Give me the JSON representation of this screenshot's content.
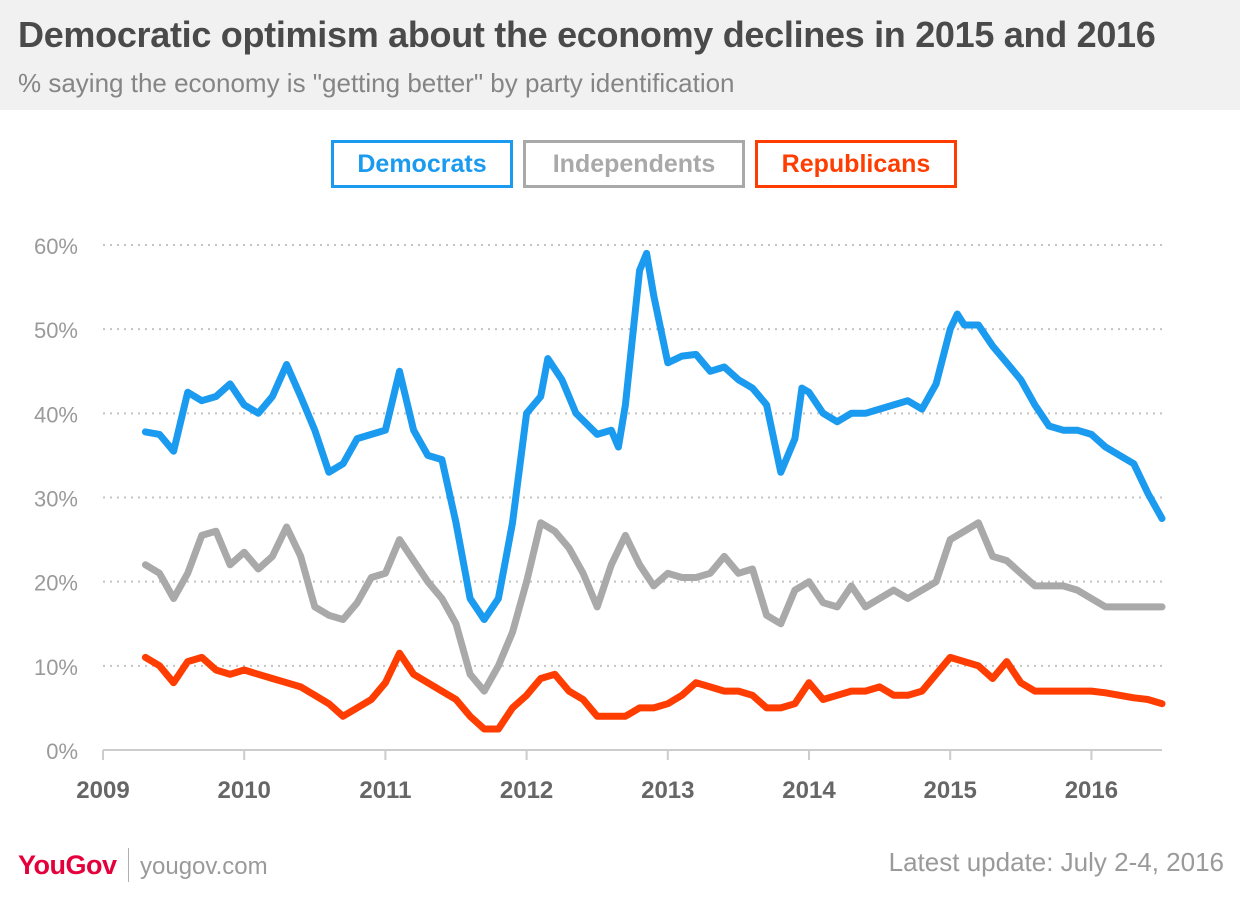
{
  "header": {
    "title": "Democratic optimism about the economy declines in 2015 and 2016",
    "subtitle": "% saying the economy is \"getting better\" by party identification"
  },
  "legend": [
    {
      "label": "Democrats",
      "color": "#1a9bf0"
    },
    {
      "label": "Independents",
      "color": "#a9a9a9"
    },
    {
      "label": "Republicans",
      "color": "#ff3d00"
    }
  ],
  "footer": {
    "logo": "YouGov",
    "site": "yougov.com",
    "update": "Latest update: July 2-4, 2016"
  },
  "chart_data": {
    "type": "line",
    "title": "Democratic optimism about the economy declines in 2015 and 2016",
    "subtitle": "% saying the economy is \"getting better\" by party identification",
    "xlabel": "",
    "ylabel": "",
    "xlim": [
      2009.0,
      2016.5
    ],
    "ylim": [
      0,
      60
    ],
    "x_ticks": [
      2009,
      2010,
      2011,
      2012,
      2013,
      2014,
      2015,
      2016
    ],
    "x_tick_labels": [
      "2009",
      "2010",
      "2011",
      "2012",
      "2013",
      "2014",
      "2015",
      "2016"
    ],
    "y_ticks": [
      0,
      10,
      20,
      30,
      40,
      50,
      60
    ],
    "y_tick_labels": [
      "0%",
      "10%",
      "20%",
      "30%",
      "40%",
      "50%",
      "60%"
    ],
    "grid": "horizontal dotted",
    "legend_position": "top-center",
    "series": [
      {
        "name": "Democrats",
        "color": "#1a9bf0",
        "points": [
          [
            2009.3,
            37.8
          ],
          [
            2009.4,
            37.5
          ],
          [
            2009.5,
            35.5
          ],
          [
            2009.6,
            42.5
          ],
          [
            2009.7,
            41.5
          ],
          [
            2009.8,
            42
          ],
          [
            2009.9,
            43.5
          ],
          [
            2010.0,
            41
          ],
          [
            2010.1,
            40
          ],
          [
            2010.2,
            42
          ],
          [
            2010.3,
            45.8
          ],
          [
            2010.4,
            42
          ],
          [
            2010.5,
            38
          ],
          [
            2010.6,
            33
          ],
          [
            2010.7,
            34
          ],
          [
            2010.8,
            37
          ],
          [
            2010.9,
            37.5
          ],
          [
            2011.0,
            38
          ],
          [
            2011.1,
            45
          ],
          [
            2011.2,
            38
          ],
          [
            2011.3,
            35
          ],
          [
            2011.4,
            34.5
          ],
          [
            2011.5,
            27
          ],
          [
            2011.6,
            18
          ],
          [
            2011.7,
            15.5
          ],
          [
            2011.8,
            18
          ],
          [
            2011.9,
            27
          ],
          [
            2012.0,
            40
          ],
          [
            2012.1,
            42
          ],
          [
            2012.15,
            46.5
          ],
          [
            2012.25,
            44
          ],
          [
            2012.35,
            40
          ],
          [
            2012.5,
            37.5
          ],
          [
            2012.6,
            38
          ],
          [
            2012.65,
            36
          ],
          [
            2012.7,
            41
          ],
          [
            2012.8,
            57
          ],
          [
            2012.85,
            59
          ],
          [
            2012.9,
            54
          ],
          [
            2013.0,
            46
          ],
          [
            2013.1,
            46.8
          ],
          [
            2013.2,
            47
          ],
          [
            2013.3,
            45
          ],
          [
            2013.4,
            45.5
          ],
          [
            2013.5,
            44
          ],
          [
            2013.6,
            43
          ],
          [
            2013.7,
            41
          ],
          [
            2013.8,
            33
          ],
          [
            2013.9,
            37
          ],
          [
            2013.95,
            43
          ],
          [
            2014.0,
            42.5
          ],
          [
            2014.1,
            40
          ],
          [
            2014.2,
            39
          ],
          [
            2014.3,
            40
          ],
          [
            2014.4,
            40
          ],
          [
            2014.5,
            40.5
          ],
          [
            2014.6,
            41
          ],
          [
            2014.7,
            41.5
          ],
          [
            2014.8,
            40.5
          ],
          [
            2014.9,
            43.5
          ],
          [
            2015.0,
            50
          ],
          [
            2015.05,
            51.8
          ],
          [
            2015.1,
            50.5
          ],
          [
            2015.2,
            50.5
          ],
          [
            2015.3,
            48
          ],
          [
            2015.4,
            46
          ],
          [
            2015.5,
            44
          ],
          [
            2015.6,
            41
          ],
          [
            2015.7,
            38.5
          ],
          [
            2015.8,
            38
          ],
          [
            2015.9,
            38
          ],
          [
            2016.0,
            37.5
          ],
          [
            2016.1,
            36
          ],
          [
            2016.2,
            35
          ],
          [
            2016.3,
            34
          ],
          [
            2016.4,
            30.5
          ],
          [
            2016.5,
            27.5
          ]
        ]
      },
      {
        "name": "Independents",
        "color": "#a9a9a9",
        "points": [
          [
            2009.3,
            22
          ],
          [
            2009.4,
            21
          ],
          [
            2009.5,
            18
          ],
          [
            2009.6,
            21
          ],
          [
            2009.7,
            25.5
          ],
          [
            2009.8,
            26
          ],
          [
            2009.9,
            22
          ],
          [
            2010.0,
            23.5
          ],
          [
            2010.1,
            21.5
          ],
          [
            2010.2,
            23
          ],
          [
            2010.3,
            26.5
          ],
          [
            2010.4,
            23
          ],
          [
            2010.5,
            17
          ],
          [
            2010.6,
            16
          ],
          [
            2010.7,
            15.5
          ],
          [
            2010.8,
            17.5
          ],
          [
            2010.9,
            20.5
          ],
          [
            2011.0,
            21
          ],
          [
            2011.1,
            25
          ],
          [
            2011.2,
            22.5
          ],
          [
            2011.3,
            20
          ],
          [
            2011.4,
            18
          ],
          [
            2011.5,
            15
          ],
          [
            2011.6,
            9
          ],
          [
            2011.7,
            7
          ],
          [
            2011.8,
            10
          ],
          [
            2011.9,
            14
          ],
          [
            2012.0,
            20
          ],
          [
            2012.1,
            27
          ],
          [
            2012.2,
            26
          ],
          [
            2012.3,
            24
          ],
          [
            2012.4,
            21
          ],
          [
            2012.5,
            17
          ],
          [
            2012.6,
            22
          ],
          [
            2012.7,
            25.5
          ],
          [
            2012.8,
            22
          ],
          [
            2012.9,
            19.5
          ],
          [
            2013.0,
            21
          ],
          [
            2013.1,
            20.5
          ],
          [
            2013.2,
            20.5
          ],
          [
            2013.3,
            21
          ],
          [
            2013.4,
            23
          ],
          [
            2013.5,
            21
          ],
          [
            2013.6,
            21.5
          ],
          [
            2013.7,
            16
          ],
          [
            2013.8,
            15
          ],
          [
            2013.9,
            19
          ],
          [
            2014.0,
            20
          ],
          [
            2014.1,
            17.5
          ],
          [
            2014.2,
            17
          ],
          [
            2014.3,
            19.5
          ],
          [
            2014.4,
            17
          ],
          [
            2014.5,
            18
          ],
          [
            2014.6,
            19
          ],
          [
            2014.7,
            18
          ],
          [
            2014.8,
            19
          ],
          [
            2014.9,
            20
          ],
          [
            2015.0,
            25
          ],
          [
            2015.1,
            26
          ],
          [
            2015.2,
            27
          ],
          [
            2015.3,
            23
          ],
          [
            2015.4,
            22.5
          ],
          [
            2015.5,
            21
          ],
          [
            2015.6,
            19.5
          ],
          [
            2015.7,
            19.5
          ],
          [
            2015.8,
            19.5
          ],
          [
            2015.9,
            19
          ],
          [
            2016.0,
            18
          ],
          [
            2016.1,
            17
          ],
          [
            2016.2,
            17
          ],
          [
            2016.3,
            17
          ],
          [
            2016.4,
            17
          ],
          [
            2016.5,
            17
          ]
        ]
      },
      {
        "name": "Republicans",
        "color": "#ff3d00",
        "points": [
          [
            2009.3,
            11
          ],
          [
            2009.4,
            10
          ],
          [
            2009.5,
            8
          ],
          [
            2009.6,
            10.5
          ],
          [
            2009.7,
            11
          ],
          [
            2009.8,
            9.5
          ],
          [
            2009.9,
            9
          ],
          [
            2010.0,
            9.5
          ],
          [
            2010.1,
            9
          ],
          [
            2010.2,
            8.5
          ],
          [
            2010.3,
            8
          ],
          [
            2010.4,
            7.5
          ],
          [
            2010.5,
            6.5
          ],
          [
            2010.6,
            5.5
          ],
          [
            2010.7,
            4
          ],
          [
            2010.8,
            5
          ],
          [
            2010.9,
            6
          ],
          [
            2011.0,
            8
          ],
          [
            2011.1,
            11.5
          ],
          [
            2011.2,
            9
          ],
          [
            2011.3,
            8
          ],
          [
            2011.4,
            7
          ],
          [
            2011.5,
            6
          ],
          [
            2011.6,
            4
          ],
          [
            2011.7,
            2.5
          ],
          [
            2011.8,
            2.5
          ],
          [
            2011.9,
            5
          ],
          [
            2012.0,
            6.5
          ],
          [
            2012.1,
            8.5
          ],
          [
            2012.2,
            9
          ],
          [
            2012.3,
            7
          ],
          [
            2012.4,
            6
          ],
          [
            2012.5,
            4
          ],
          [
            2012.6,
            4
          ],
          [
            2012.7,
            4
          ],
          [
            2012.8,
            5
          ],
          [
            2012.9,
            5
          ],
          [
            2013.0,
            5.5
          ],
          [
            2013.1,
            6.5
          ],
          [
            2013.2,
            8
          ],
          [
            2013.3,
            7.5
          ],
          [
            2013.4,
            7
          ],
          [
            2013.5,
            7
          ],
          [
            2013.6,
            6.5
          ],
          [
            2013.7,
            5
          ],
          [
            2013.8,
            5
          ],
          [
            2013.9,
            5.5
          ],
          [
            2014.0,
            8
          ],
          [
            2014.1,
            6
          ],
          [
            2014.2,
            6.5
          ],
          [
            2014.3,
            7
          ],
          [
            2014.4,
            7
          ],
          [
            2014.5,
            7.5
          ],
          [
            2014.6,
            6.5
          ],
          [
            2014.7,
            6.5
          ],
          [
            2014.8,
            7
          ],
          [
            2014.9,
            9
          ],
          [
            2015.0,
            11
          ],
          [
            2015.1,
            10.5
          ],
          [
            2015.2,
            10
          ],
          [
            2015.3,
            8.5
          ],
          [
            2015.4,
            10.5
          ],
          [
            2015.5,
            8
          ],
          [
            2015.6,
            7
          ],
          [
            2015.7,
            7
          ],
          [
            2015.8,
            7
          ],
          [
            2015.9,
            7
          ],
          [
            2016.0,
            7
          ],
          [
            2016.1,
            6.8
          ],
          [
            2016.2,
            6.5
          ],
          [
            2016.3,
            6.2
          ],
          [
            2016.4,
            6
          ],
          [
            2016.5,
            5.5
          ]
        ]
      }
    ]
  }
}
